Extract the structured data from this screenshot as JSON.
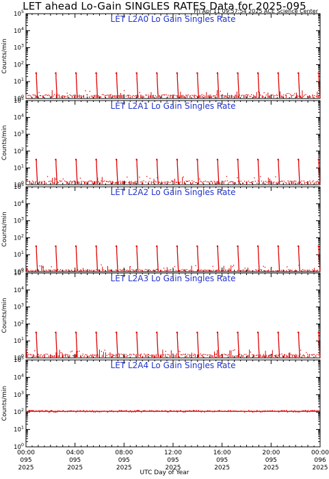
{
  "title": "LET ahead Lo-Gain SINGLES RATES Data for 2025-095",
  "timestamp": "Fri Apr 11 09:57:54 2025 ACE Science Center",
  "xlabel": "UTC Day of Year",
  "colors": {
    "data": "#dd0000",
    "panel_title": "#2233cc",
    "axes": "#000000"
  },
  "chart_data": [
    {
      "type": "scatter",
      "title": "LET L2A0 Lo Gain Singles Rate",
      "ylabel": "Counts/min",
      "yscale": "log",
      "ylim": [
        1,
        100000
      ],
      "xlim": [
        0,
        24
      ],
      "spike_hours": [
        0.85,
        2.45,
        4.1,
        5.75,
        7.4,
        9.05,
        10.7,
        12.35,
        14.0,
        15.65,
        17.3,
        18.95,
        20.6,
        22.25,
        23.9
      ],
      "spike_peak": 35,
      "baseline": 1.5
    },
    {
      "type": "scatter",
      "title": "LET L2A1 Lo Gain Singles Rate",
      "ylabel": "Counts/min",
      "yscale": "log",
      "ylim": [
        1,
        100000
      ],
      "xlim": [
        0,
        24
      ],
      "spike_hours": [
        0.85,
        2.45,
        4.1,
        5.75,
        7.4,
        9.05,
        10.7,
        12.35,
        14.0,
        15.65,
        17.3,
        18.95,
        20.6,
        22.25,
        23.9
      ],
      "spike_peak": 35,
      "baseline": 1.5
    },
    {
      "type": "scatter",
      "title": "LET L2A2 Lo Gain Singles Rate",
      "ylabel": "Counts/min",
      "yscale": "log",
      "ylim": [
        1,
        100000
      ],
      "xlim": [
        0,
        24
      ],
      "spike_hours": [
        0.85,
        2.45,
        4.1,
        5.75,
        7.4,
        9.05,
        10.7,
        12.35,
        14.0,
        15.65,
        17.3,
        18.95,
        20.6,
        22.25,
        23.9
      ],
      "spike_peak": 35,
      "baseline": 1.2
    },
    {
      "type": "scatter",
      "title": "LET L2A3 Lo Gain Singles Rate",
      "ylabel": "Counts/min",
      "yscale": "log",
      "ylim": [
        1,
        100000
      ],
      "xlim": [
        0,
        24
      ],
      "spike_hours": [
        0.85,
        2.45,
        4.1,
        5.75,
        7.4,
        9.05,
        10.7,
        12.35,
        14.0,
        15.65,
        17.3,
        18.95,
        20.6,
        22.25,
        23.9
      ],
      "spike_peak": 35,
      "baseline": 1.5
    },
    {
      "type": "scatter",
      "title": "LET L2A4 Lo Gain Singles Rate",
      "ylabel": "Counts/min",
      "yscale": "log",
      "ylim": [
        1,
        100000
      ],
      "xlim": [
        0,
        24
      ],
      "spike_hours": [],
      "spike_peak": 0,
      "baseline": 110
    }
  ],
  "y_ticks": [
    {
      "label": "10",
      "exp": "0",
      "value": 1
    },
    {
      "label": "10",
      "exp": "1",
      "value": 10
    },
    {
      "label": "10",
      "exp": "2",
      "value": 100
    },
    {
      "label": "10",
      "exp": "3",
      "value": 1000
    },
    {
      "label": "10",
      "exp": "4",
      "value": 10000
    },
    {
      "label": "10",
      "exp": "5",
      "value": 100000
    }
  ],
  "x_ticks": [
    {
      "hour": 0,
      "time": "00:00",
      "doy": "095",
      "year": "2025"
    },
    {
      "hour": 4,
      "time": "04:00",
      "doy": "095",
      "year": "2025"
    },
    {
      "hour": 8,
      "time": "08:00",
      "doy": "095",
      "year": "2025"
    },
    {
      "hour": 12,
      "time": "12:00",
      "doy": "095",
      "year": "2025"
    },
    {
      "hour": 16,
      "time": "16:00",
      "doy": "095",
      "year": "2025"
    },
    {
      "hour": 20,
      "time": "20:00",
      "doy": "095",
      "year": "2025"
    },
    {
      "hour": 24,
      "time": "00:00",
      "doy": "096",
      "year": "2025"
    }
  ]
}
